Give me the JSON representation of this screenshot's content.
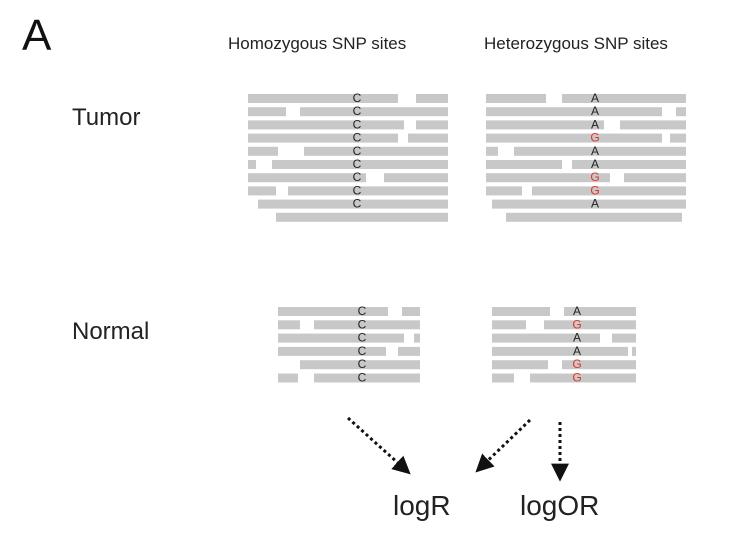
{
  "panel_label": "A",
  "columns": {
    "homozygous": "Homozygous SNP sites",
    "heterozygous": "Heterozygous SNP sites"
  },
  "rows": {
    "tumor": "Tumor",
    "normal": "Normal"
  },
  "outputs": {
    "logr": "logR",
    "logor": "logOR"
  },
  "colors": {
    "read": "#c8c8c8",
    "ref_base": "#222222",
    "alt_base": "#e0322a",
    "arrow": "#111111"
  },
  "alleles": {
    "tumor_hom": [
      "C",
      "C",
      "C",
      "C",
      "C",
      "C",
      "C",
      "C",
      "C"
    ],
    "tumor_het": [
      "A",
      "A",
      "A",
      "G",
      "A",
      "A",
      "G",
      "G",
      "A"
    ],
    "normal_hom": [
      "C",
      "C",
      "C",
      "C",
      "C",
      "C"
    ],
    "normal_het": [
      "A",
      "G",
      "A",
      "A",
      "G",
      "G"
    ],
    "alt_allele": "G"
  }
}
